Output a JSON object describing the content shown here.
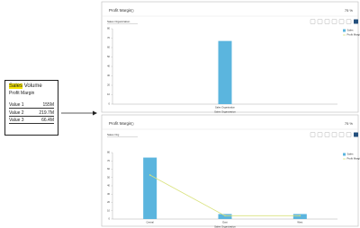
{
  "legend_box": {
    "title_highlight": "Sales",
    "title_rest": "Volume",
    "subtitle": "Profit Margin",
    "rows": [
      [
        "Value 1",
        "155M"
      ],
      [
        "Value 2",
        "219.7M"
      ],
      [
        "Value 3",
        "66.4M"
      ]
    ]
  },
  "panels": [
    {
      "title": "Profit Margin",
      "badge": "75 %",
      "filter": "Sales Organization",
      "chart_data": {
        "type": "bar",
        "categories": [
          "Sales Organization"
        ],
        "xlabel": "Sales Organization",
        "ylim": [
          0,
          80
        ],
        "yticks": [
          0,
          10,
          20,
          30,
          40,
          50,
          60,
          70,
          80
        ],
        "series": [
          {
            "name": "Sales",
            "color": "#5bb5de",
            "values": [
              67
            ]
          },
          {
            "name": "Profit Margin",
            "color": "#d9e27c",
            "type": "line",
            "values": [
              null
            ]
          }
        ]
      }
    },
    {
      "title": "Profit Margin",
      "badge": "75 %",
      "filter": "Sales Org",
      "chart_data": {
        "type": "bar",
        "categories": [
          "Central",
          "East",
          "West"
        ],
        "xlabel": "Sales Organization",
        "ylim": [
          0,
          80
        ],
        "yticks": [
          0,
          10,
          20,
          30,
          40,
          50,
          60,
          70,
          80
        ],
        "series": [
          {
            "name": "Sales",
            "color": "#5bb5de",
            "values": [
              74,
              6,
              6
            ]
          },
          {
            "name": "Profit Margin",
            "color": "#d9e27c",
            "type": "line",
            "values": [
              53,
              4,
              4
            ]
          }
        ]
      }
    }
  ]
}
